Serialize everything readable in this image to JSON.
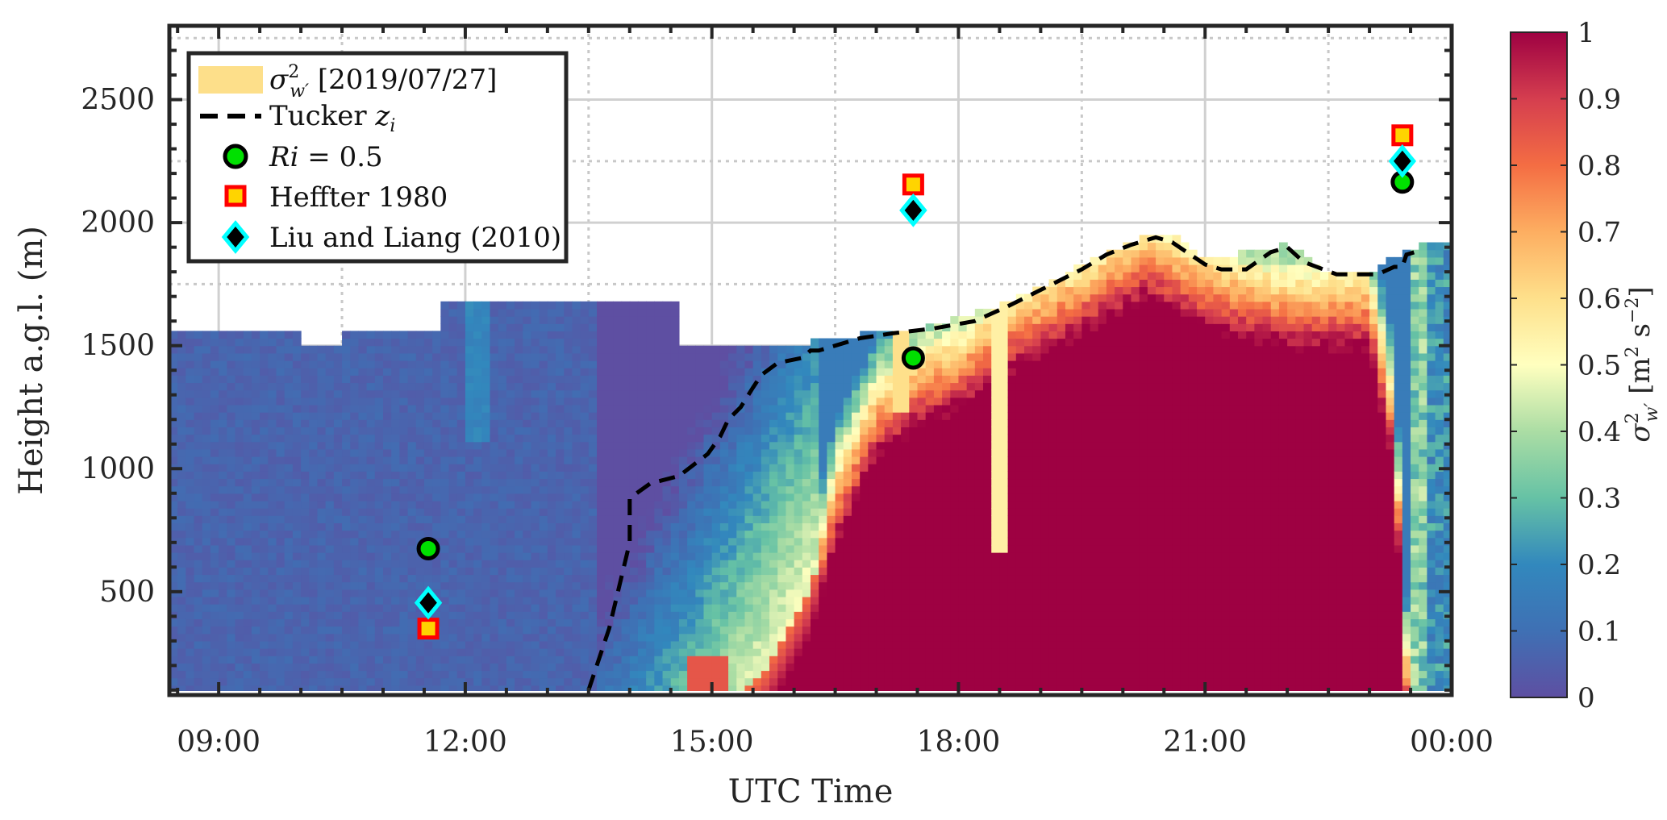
{
  "chart_data": {
    "type": "heatmap",
    "xlabel": "UTC Time",
    "ylabel": "Height a.g.l. (m)",
    "colorbar_label": "σ²_w′ [m² s⁻²]",
    "colorbar_label_parts": {
      "base": "σ",
      "sup": "2",
      "sub": "w′",
      "unit_open": " [m",
      "unit_sup1": "2",
      "unit_mid": " s",
      "unit_sup2": "−2",
      "unit_close": "]"
    },
    "x_range_hours": [
      8.4,
      24.0
    ],
    "y_range": [
      80,
      2800
    ],
    "x_ticks": [
      {
        "hour": 9,
        "label": "09:00"
      },
      {
        "hour": 12,
        "label": "12:00"
      },
      {
        "hour": 15,
        "label": "15:00"
      },
      {
        "hour": 18,
        "label": "18:00"
      },
      {
        "hour": 21,
        "label": "21:00"
      },
      {
        "hour": 24,
        "label": "00:00"
      }
    ],
    "y_ticks": [
      {
        "value": 500,
        "label": "500"
      },
      {
        "value": 1000,
        "label": "1000"
      },
      {
        "value": 1500,
        "label": "1500"
      },
      {
        "value": 2000,
        "label": "2000"
      },
      {
        "value": 2500,
        "label": "2500"
      }
    ],
    "colorbar_ticks": [
      {
        "value": 0,
        "label": "0"
      },
      {
        "value": 0.1,
        "label": "0.1"
      },
      {
        "value": 0.2,
        "label": "0.2"
      },
      {
        "value": 0.3,
        "label": "0.3"
      },
      {
        "value": 0.4,
        "label": "0.4"
      },
      {
        "value": 0.5,
        "label": "0.5"
      },
      {
        "value": 0.6,
        "label": "0.6"
      },
      {
        "value": 0.7,
        "label": "0.7"
      },
      {
        "value": 0.8,
        "label": "0.8"
      },
      {
        "value": 0.9,
        "label": "0.9"
      },
      {
        "value": 1,
        "label": "1"
      }
    ],
    "color_range": [
      0,
      1
    ],
    "colormap": "Spectral (reversed)",
    "grid": true,
    "legend_position": "top-left",
    "legend": [
      {
        "key": "variance",
        "label_base": "σ",
        "label_sup": "2",
        "label_sub": "w′",
        "label_rest": " [2019/07/27]"
      },
      {
        "key": "tucker",
        "label_plain": "Tucker ",
        "label_italic": "z",
        "label_sub": "i"
      },
      {
        "key": "ri",
        "label_italic": "Ri",
        "label_plain": " = 0.5"
      },
      {
        "key": "heffter",
        "label_plain": "Heffter 1980"
      },
      {
        "key": "liu",
        "label_plain": "Liu and Liang (2010)"
      }
    ],
    "series": [
      {
        "name": "Tucker z_i",
        "type": "line",
        "style": "dashed",
        "color": "#000000",
        "x": [
          13.5,
          13.75,
          14.0,
          14.0,
          14.25,
          14.6,
          14.95,
          15.1,
          15.2,
          15.35,
          15.5,
          15.6,
          15.8,
          16.1,
          16.2,
          16.3,
          16.5,
          16.8,
          17.2,
          17.7,
          18.2,
          18.6,
          18.9,
          19.2,
          19.5,
          19.8,
          20.1,
          20.4,
          20.6,
          21.0,
          21.2,
          21.5,
          21.8,
          22.0,
          22.2,
          22.6,
          23.1,
          23.3,
          23.4,
          23.45,
          23.55
        ],
        "y": [
          100,
          350,
          700,
          880,
          940,
          970,
          1060,
          1130,
          1200,
          1250,
          1330,
          1380,
          1430,
          1450,
          1480,
          1480,
          1500,
          1530,
          1550,
          1570,
          1600,
          1660,
          1710,
          1760,
          1810,
          1870,
          1910,
          1940,
          1920,
          1830,
          1810,
          1810,
          1880,
          1900,
          1840,
          1790,
          1790,
          1820,
          1820,
          1870,
          1880
        ]
      },
      {
        "name": "Ri = 0.5",
        "type": "scatter",
        "marker": "circle",
        "color": "#00e000",
        "x": [
          11.55,
          17.45,
          23.4
        ],
        "y": [
          675,
          1450,
          2165
        ]
      },
      {
        "name": "Heffter 1980",
        "type": "scatter",
        "marker": "square",
        "color": "#ff0000",
        "x": [
          11.55,
          17.45,
          23.4
        ],
        "y": [
          350,
          2155,
          2355
        ]
      },
      {
        "name": "Liu and Liang (2010)",
        "type": "scatter",
        "marker": "diamond",
        "color": "#00ffff",
        "x": [
          11.55,
          17.45,
          23.4
        ],
        "y": [
          455,
          2050,
          2250
        ]
      }
    ]
  }
}
